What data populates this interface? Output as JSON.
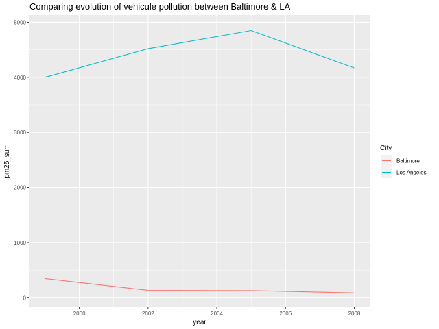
{
  "chart_data": {
    "type": "line",
    "title": "Comparing evolution of vehicule pollution between Baltimore & LA",
    "xlabel": "year",
    "ylabel": "pm25_sum",
    "x": [
      1999,
      2002,
      2005,
      2008
    ],
    "xticks": [
      "2000",
      "2002",
      "2004",
      "2006",
      "2008"
    ],
    "yticks": [
      "0",
      "1000",
      "2000",
      "3000",
      "4000",
      "5000"
    ],
    "xlim": [
      1998.55,
      2008.45
    ],
    "ylim": [
      -170,
      5130
    ],
    "grid": true,
    "legend": {
      "title": "City",
      "placement": "right"
    },
    "series": [
      {
        "name": "Baltimore",
        "color": "#F8766D",
        "values": [
          347,
          134,
          130,
          89
        ]
      },
      {
        "name": "Los Angeles",
        "color": "#00BFC4",
        "values": [
          4000,
          4520,
          4850,
          4170
        ]
      }
    ]
  }
}
